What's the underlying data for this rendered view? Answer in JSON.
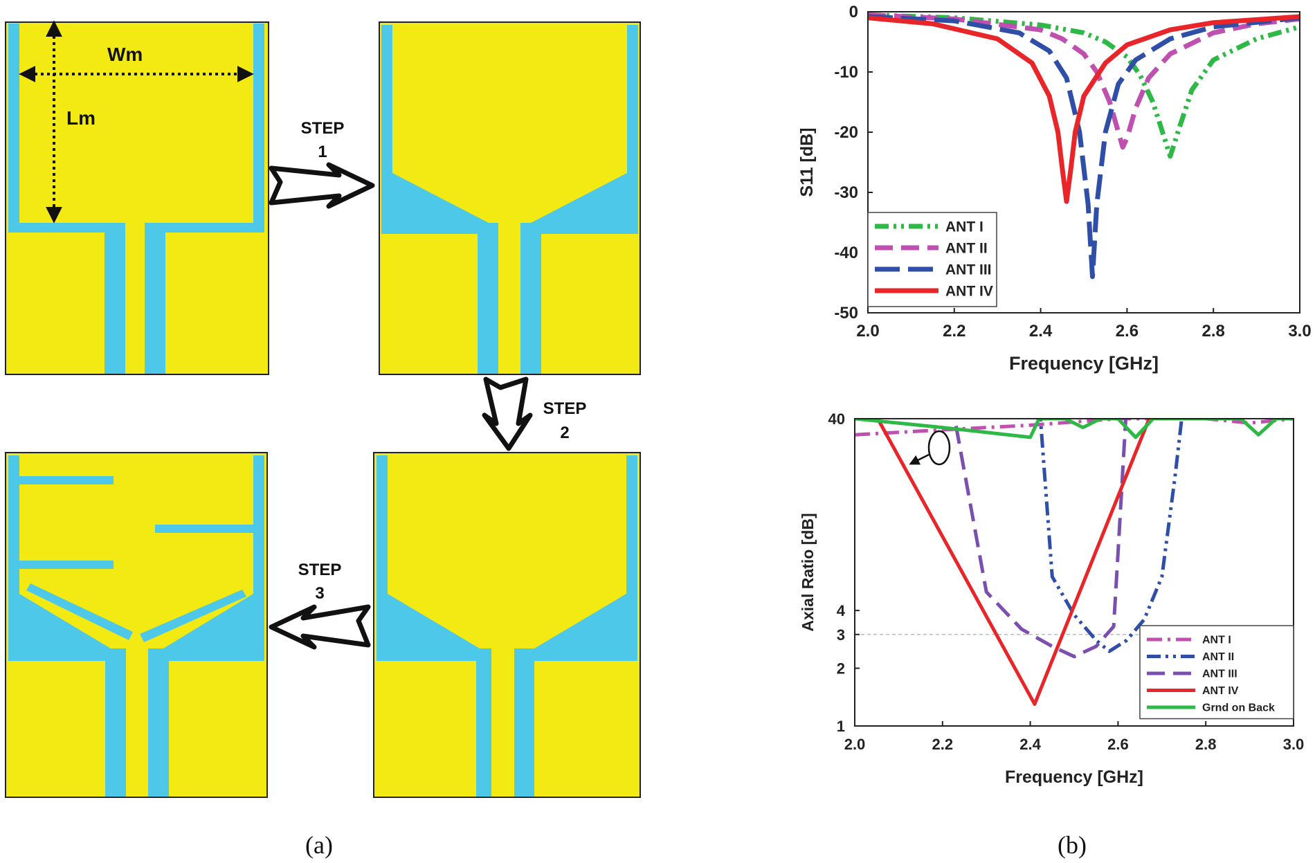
{
  "panel_a": {
    "caption": "(a)",
    "dim_width": "Wm",
    "dim_length": "Lm",
    "step1": [
      "STEP",
      "1"
    ],
    "step2": [
      "STEP",
      "2"
    ],
    "step3": [
      "STEP",
      "3"
    ],
    "colors": {
      "patch": "#F2EA12",
      "gap": "#4EC8E8",
      "border": "#333333"
    }
  },
  "panel_b": {
    "caption": "(b)",
    "chart_data": [
      {
        "type": "line",
        "xlabel": "Frequency [GHz]",
        "ylabel": "S11 [dB]",
        "xlim": [
          2.0,
          3.0
        ],
        "ylim": [
          -50,
          0
        ],
        "xticks": [
          "2.0",
          "2.2",
          "2.4",
          "2.6",
          "2.8",
          "3.0"
        ],
        "yticks": [
          "0",
          "-10",
          "-20",
          "-30",
          "-40",
          "-50"
        ],
        "grid": false,
        "legend_position": "bottom-left",
        "series": [
          {
            "name": "ANT I",
            "color": "#2EB845",
            "dash": "dash-dot-dot",
            "x": [
              2.0,
              2.2,
              2.4,
              2.5,
              2.55,
              2.6,
              2.63,
              2.66,
              2.68,
              2.7,
              2.72,
              2.75,
              2.8,
              2.9,
              3.0
            ],
            "y": [
              -0.5,
              -1.0,
              -2.2,
              -3.5,
              -5.0,
              -7.5,
              -10.5,
              -15.0,
              -19.5,
              -24.0,
              -19.5,
              -13.0,
              -8.0,
              -4.5,
              -2.5
            ]
          },
          {
            "name": "ANT II",
            "color": "#C050B0",
            "dash": "dash",
            "x": [
              2.0,
              2.2,
              2.4,
              2.45,
              2.5,
              2.53,
              2.56,
              2.58,
              2.59,
              2.6,
              2.62,
              2.65,
              2.7,
              2.8,
              2.9,
              3.0
            ],
            "y": [
              -0.5,
              -1.2,
              -3.0,
              -4.5,
              -7.0,
              -10.0,
              -15.0,
              -20.0,
              -22.5,
              -21.0,
              -16.0,
              -11.0,
              -7.0,
              -3.5,
              -2.0,
              -1.2
            ]
          },
          {
            "name": "ANT III",
            "color": "#2F4EA8",
            "dash": "longdash",
            "x": [
              2.0,
              2.2,
              2.35,
              2.42,
              2.46,
              2.49,
              2.51,
              2.52,
              2.53,
              2.55,
              2.58,
              2.62,
              2.7,
              2.8,
              3.0
            ],
            "y": [
              -0.8,
              -1.5,
              -3.5,
              -6.5,
              -11.0,
              -20.0,
              -32.0,
              -44.0,
              -32.0,
              -20.0,
              -12.0,
              -8.0,
              -4.5,
              -2.5,
              -1.0
            ]
          },
          {
            "name": "ANT IV",
            "color": "#E8262A",
            "dash": "solid",
            "x": [
              2.0,
              2.15,
              2.3,
              2.38,
              2.42,
              2.44,
              2.45,
              2.46,
              2.47,
              2.48,
              2.5,
              2.55,
              2.6,
              2.7,
              2.8,
              3.0
            ],
            "y": [
              -1.0,
              -2.0,
              -4.5,
              -8.5,
              -14.0,
              -20.0,
              -26.0,
              -31.5,
              -26.0,
              -20.0,
              -14.0,
              -8.5,
              -5.5,
              -3.0,
              -1.8,
              -0.8
            ]
          }
        ]
      },
      {
        "type": "line",
        "xlabel": "Frequency [GHz]",
        "ylabel": "Axial Ratio [dB]",
        "xlim": [
          2.0,
          3.0
        ],
        "ylim": [
          1,
          40
        ],
        "yscale": "log",
        "xticks": [
          "2.0",
          "2.2",
          "2.4",
          "2.6",
          "2.8",
          "3.0"
        ],
        "yticks": [
          "1",
          "2",
          "3",
          "4",
          "40"
        ],
        "reference_line": {
          "y": 3,
          "color": "#bbbbbb",
          "style": "dashed"
        },
        "legend_position": "bottom-right",
        "series": [
          {
            "name": "ANT I",
            "color": "#C050B0",
            "dash": "dash-dot",
            "x": [
              2.0,
              2.2,
              2.4,
              2.6,
              2.8,
              2.9,
              3.0
            ],
            "y": [
              33,
              35,
              37,
              40,
              40,
              38,
              40
            ]
          },
          {
            "name": "ANT II",
            "color": "#2F4EA8",
            "dash": "dash-dot-dot",
            "x": [
              2.42,
              2.45,
              2.5,
              2.55,
              2.58,
              2.62,
              2.66,
              2.7,
              2.73,
              2.75
            ],
            "y": [
              50,
              6,
              3.8,
              2.8,
              2.45,
              2.8,
              3.6,
              6,
              20,
              50
            ]
          },
          {
            "name": "ANT III",
            "color": "#7A4FB0",
            "dash": "dash",
            "x": [
              2.22,
              2.3,
              2.38,
              2.45,
              2.5,
              2.55,
              2.59,
              2.6,
              2.62
            ],
            "y": [
              50,
              5,
              3.2,
              2.6,
              2.3,
              2.6,
              3.3,
              8,
              50
            ]
          },
          {
            "name": "ANT IV",
            "color": "#E8262A",
            "dash": "solid",
            "x": [
              2.04,
              2.41,
              2.68
            ],
            "y": [
              45,
              1.3,
              45
            ]
          },
          {
            "name": "Grnd on Back",
            "color": "#2EB845",
            "dash": "solid",
            "x": [
              2.0,
              2.2,
              2.4,
              2.42,
              2.48,
              2.52,
              2.56,
              2.6,
              2.64,
              2.68,
              2.72,
              2.88,
              2.92,
              2.96,
              3.0
            ],
            "y": [
              40,
              36,
              32,
              40,
              40,
              36,
              40,
              40,
              32,
              40,
              40,
              40,
              33,
              40,
              40
            ]
          }
        ]
      }
    ]
  }
}
